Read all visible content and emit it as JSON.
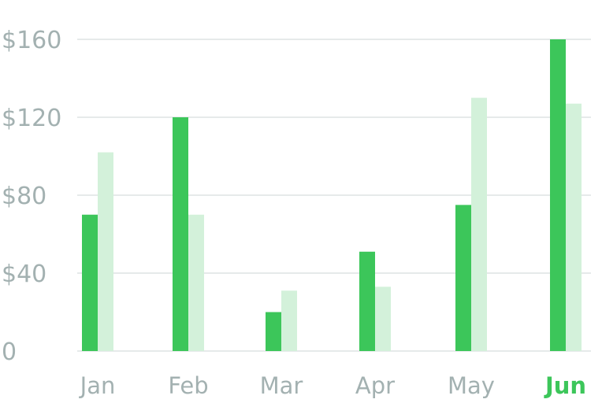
{
  "chart_data": {
    "type": "bar",
    "categories": [
      "Jan",
      "Feb",
      "Mar",
      "Apr",
      "May",
      "Jun"
    ],
    "highlighted_category": "Jun",
    "series": [
      {
        "values": [
          70,
          120,
          20,
          51,
          75,
          160
        ],
        "color": "#3cc65a"
      },
      {
        "values": [
          102,
          70,
          31,
          33,
          130,
          127
        ],
        "color": "#d3f1da"
      }
    ],
    "y_ticks": [
      {
        "value": 0,
        "label": "0"
      },
      {
        "value": 40,
        "label": "$40"
      },
      {
        "value": 80,
        "label": "$80"
      },
      {
        "value": 120,
        "label": "$120"
      },
      {
        "value": 160,
        "label": "$160"
      }
    ],
    "ylim": [
      0,
      160
    ],
    "grid": true,
    "legend": "none",
    "colors": {
      "axis_text": "#a3b1b1",
      "highlight_text": "#3cc65a",
      "grid": "#e6eaea"
    }
  }
}
